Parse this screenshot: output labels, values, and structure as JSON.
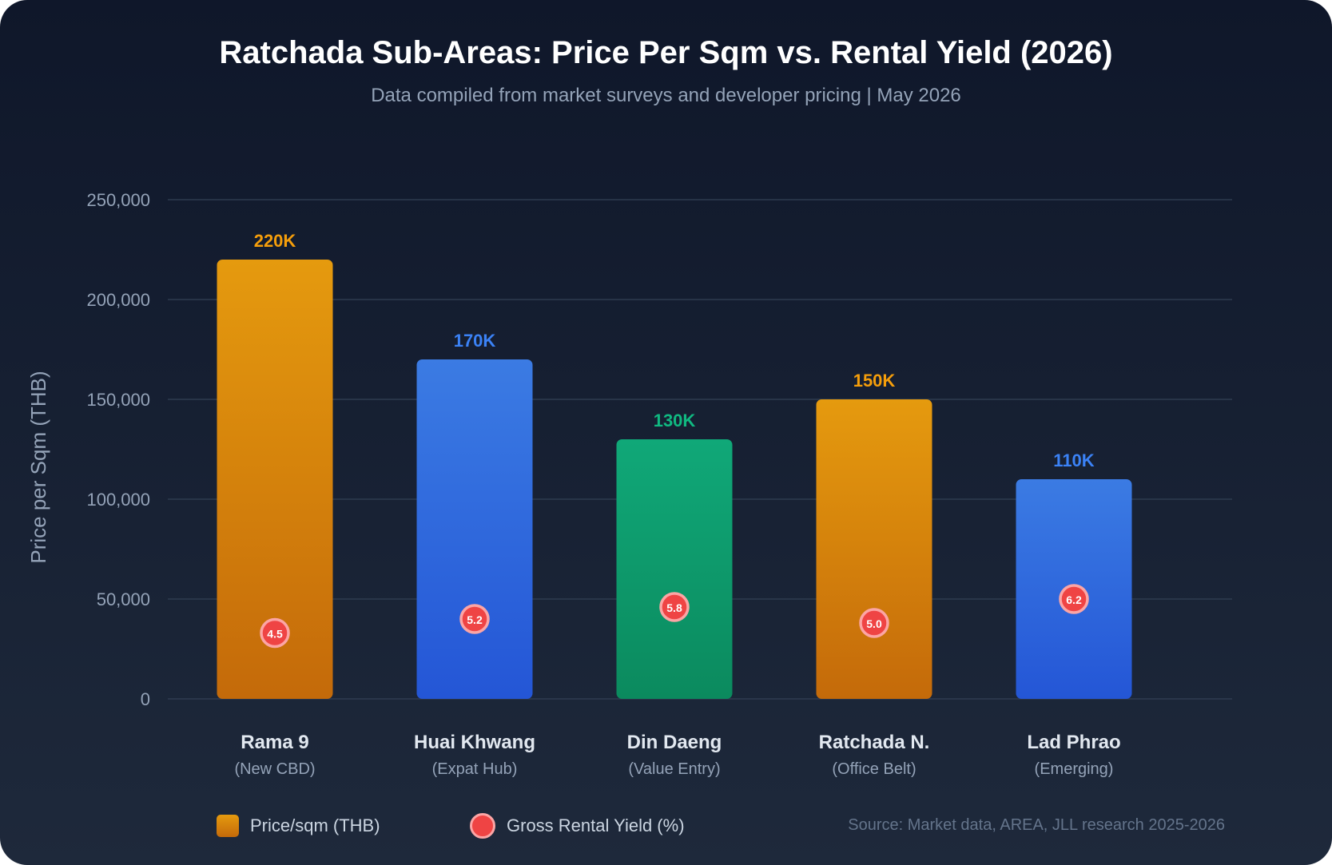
{
  "title": "Ratchada Sub-Areas: Price Per Sqm vs. Rental Yield (2026)",
  "subtitle": "Data compiled from market surveys and developer pricing | May 2026",
  "legend": {
    "price_label": "Price/sqm (THB)",
    "yield_label": "Gross Rental Yield (%)"
  },
  "source": "Source: Market data, AREA, JLL research 2025-2026",
  "colors": {
    "orange": "#e59a0e",
    "blue": "#3b82f6",
    "green": "#10b981",
    "yield_dot": "#ef4444",
    "background": "#0f172a"
  },
  "chart_data": {
    "type": "bar",
    "title": "Ratchada Sub-Areas: Price Per Sqm vs. Rental Yield (2026)",
    "ylabel": "Price per Sqm (THB)",
    "xlabel": "",
    "ylim": [
      0,
      250000
    ],
    "yticks": [
      0,
      50000,
      100000,
      150000,
      200000,
      250000
    ],
    "ytick_labels": [
      "0",
      "50,000",
      "100,000",
      "150,000",
      "200,000",
      "250,000"
    ],
    "grid": true,
    "legend_position": "bottom",
    "categories": [
      "Rama 9",
      "Huai Khwang",
      "Din Daeng",
      "Ratchada N.",
      "Lad Phrao"
    ],
    "category_subtitles": [
      "(New CBD)",
      "(Expat Hub)",
      "(Value Entry)",
      "(Office Belt)",
      "(Emerging)"
    ],
    "series": [
      {
        "name": "Price/sqm (THB)",
        "values": [
          220000,
          170000,
          130000,
          150000,
          110000
        ],
        "labels": [
          "220K",
          "170K",
          "130K",
          "150K",
          "110K"
        ],
        "colors": [
          "orange",
          "blue",
          "green",
          "orange",
          "blue"
        ]
      },
      {
        "name": "Gross Rental Yield (%)",
        "values": [
          4.5,
          5.2,
          5.8,
          5.0,
          6.2
        ],
        "labels": [
          "4.5",
          "5.2",
          "5.8",
          "5.0",
          "6.2"
        ]
      }
    ]
  }
}
